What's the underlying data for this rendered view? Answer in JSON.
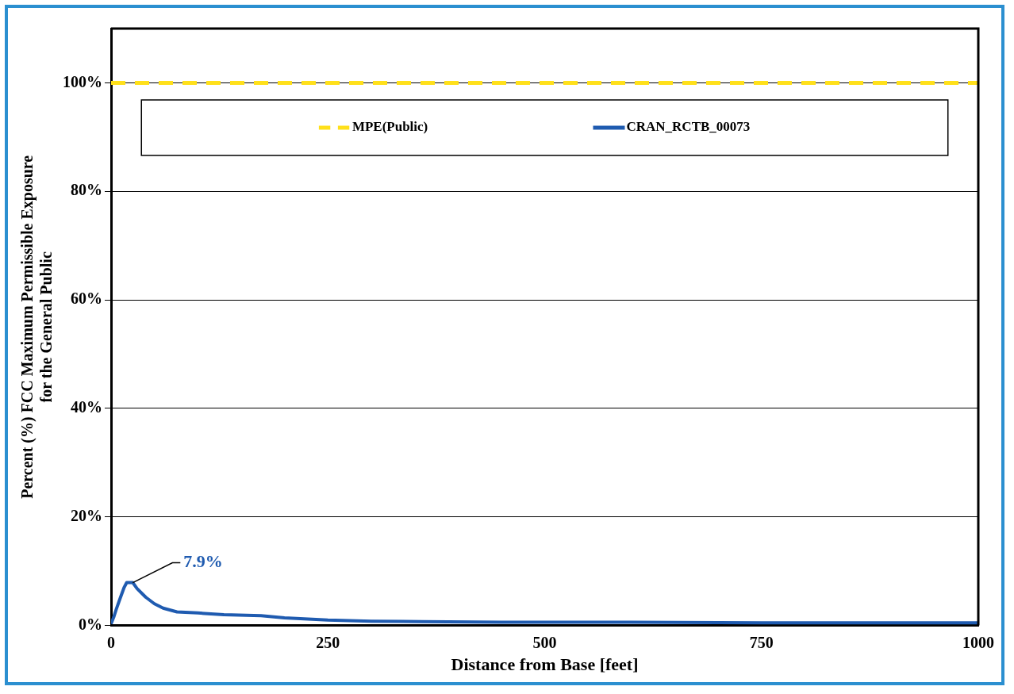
{
  "chart_data": {
    "type": "line",
    "xlabel": "Distance from Base [feet]",
    "ylabel": "Percent (%) FCC Maximum Permissible Exposure\nfor the General Public",
    "xlim": [
      0,
      1000
    ],
    "xticks": [
      0,
      250,
      500,
      750,
      1000
    ],
    "ylim": [
      0,
      110
    ],
    "yticks": [
      {
        "value": 0,
        "label": "0%"
      },
      {
        "value": 20,
        "label": "20%"
      },
      {
        "value": 40,
        "label": "40%"
      },
      {
        "value": 60,
        "label": "60%"
      },
      {
        "value": 80,
        "label": "80%"
      },
      {
        "value": 100,
        "label": "100%"
      }
    ],
    "grid": "y",
    "legend": "top",
    "marker": "none",
    "series": [
      {
        "name": "MPE(Public)",
        "color": "#ffe01a",
        "line_style": "dashed",
        "x": [
          0,
          1000
        ],
        "values": [
          100,
          100
        ]
      },
      {
        "name": "CRAN_RCTB_00073",
        "color": "#1f5bb0",
        "line_style": "solid",
        "x": [
          0,
          3,
          6,
          10,
          15,
          18,
          25,
          30,
          40,
          50,
          60,
          76,
          100,
          130,
          173,
          200,
          250,
          300,
          358,
          450,
          600,
          750,
          1000
        ],
        "values": [
          0.3,
          1.5,
          3,
          4.8,
          7,
          7.9,
          7.9,
          6.8,
          5.2,
          4.0,
          3.2,
          2.5,
          2.3,
          2.0,
          1.8,
          1.4,
          1.0,
          0.8,
          0.7,
          0.6,
          0.6,
          0.5,
          0.5
        ]
      }
    ],
    "annotations": [
      {
        "text": "7.9%",
        "x": 25,
        "y": 7.9
      }
    ]
  }
}
